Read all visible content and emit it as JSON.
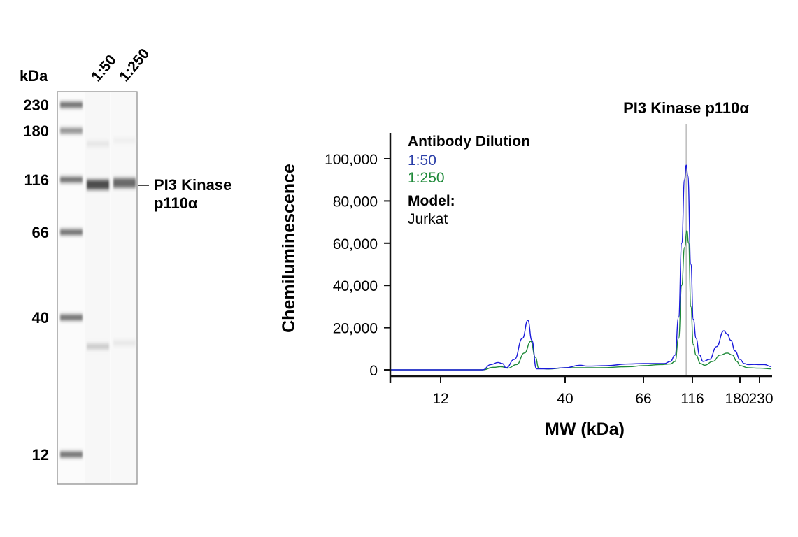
{
  "gel": {
    "unit_label": "kDa",
    "ladder": [
      230,
      180,
      116,
      66,
      40,
      12
    ],
    "lanes": [
      {
        "label": "1:50",
        "bands": [
          {
            "mw": 110,
            "intensity": 0.85
          },
          {
            "mw": 160,
            "intensity": 0.08
          },
          {
            "mw": 31,
            "intensity": 0.22
          }
        ]
      },
      {
        "label": "1:250",
        "bands": [
          {
            "mw": 112,
            "intensity": 0.7
          },
          {
            "mw": 32,
            "intensity": 0.07
          },
          {
            "mw": 165,
            "intensity": 0.03
          }
        ]
      }
    ],
    "target_label_line1": "PI3 Kinase",
    "target_label_line2": "p110α",
    "target_mw": 112
  },
  "chart_data": {
    "type": "line",
    "title": "PI3 Kinase p110α",
    "xlabel": "MW (kDa)",
    "ylabel": "Chemiluminescence",
    "x_ticks": [
      12,
      40,
      66,
      116,
      180,
      230
    ],
    "y_ticks": [
      0,
      20000,
      40000,
      60000,
      80000,
      100000
    ],
    "y_tick_labels": [
      "0",
      "20,000",
      "40,000",
      "60,000",
      "80,000",
      "100,000"
    ],
    "xlim": [
      7.4,
      267
    ],
    "ylim": [
      0,
      112000
    ],
    "marker_mw": 108,
    "legend": {
      "title": "Antibody Dilution",
      "model_label": "Model:",
      "model_value": "Jurkat",
      "placement": "top-left"
    },
    "series": [
      {
        "name": "1:50",
        "color": "#1a1adb",
        "x": [
          7.4,
          18,
          19.5,
          20.9,
          21.8,
          22.6,
          24.5,
          26.5,
          27.9,
          29,
          30.3,
          34,
          40,
          44,
          46,
          52,
          60,
          66,
          75,
          84,
          90,
          95,
          99,
          102.6,
          106,
          108,
          110,
          114,
          117,
          120,
          124,
          128,
          136,
          145,
          155,
          160,
          165.5,
          172,
          180,
          190,
          200,
          215,
          230,
          245,
          267
        ],
        "y": [
          0,
          0,
          2500,
          3500,
          3000,
          1000,
          5000,
          15000,
          23500,
          14000,
          500,
          500,
          1000,
          2200,
          1800,
          2000,
          2800,
          3000,
          3000,
          3000,
          4000,
          7000,
          25000,
          60000,
          90000,
          97000,
          92000,
          50000,
          24000,
          15000,
          7000,
          4000,
          5000,
          11000,
          18500,
          17000,
          14000,
          9000,
          5000,
          3000,
          2500,
          2600,
          2500,
          2500,
          1500
        ]
      },
      {
        "name": "1:250",
        "color": "#1f8a3a",
        "x": [
          7.4,
          18,
          20,
          21.5,
          23,
          25,
          27,
          28.7,
          30,
          31,
          34,
          40,
          50,
          60,
          66,
          80,
          90,
          95,
          99,
          102.6,
          106,
          109,
          111,
          114,
          117,
          120,
          125,
          130,
          140,
          150,
          160,
          168,
          175,
          180,
          200,
          230,
          267
        ],
        "y": [
          0,
          0,
          1200,
          1500,
          800,
          2500,
          8000,
          13500,
          6000,
          800,
          400,
          1000,
          1000,
          1500,
          2000,
          2500,
          2800,
          4000,
          15000,
          40000,
          58000,
          66000,
          60000,
          30000,
          12000,
          7000,
          3000,
          2200,
          4000,
          7000,
          8000,
          7000,
          4000,
          2000,
          1000,
          800,
          500
        ]
      }
    ]
  }
}
